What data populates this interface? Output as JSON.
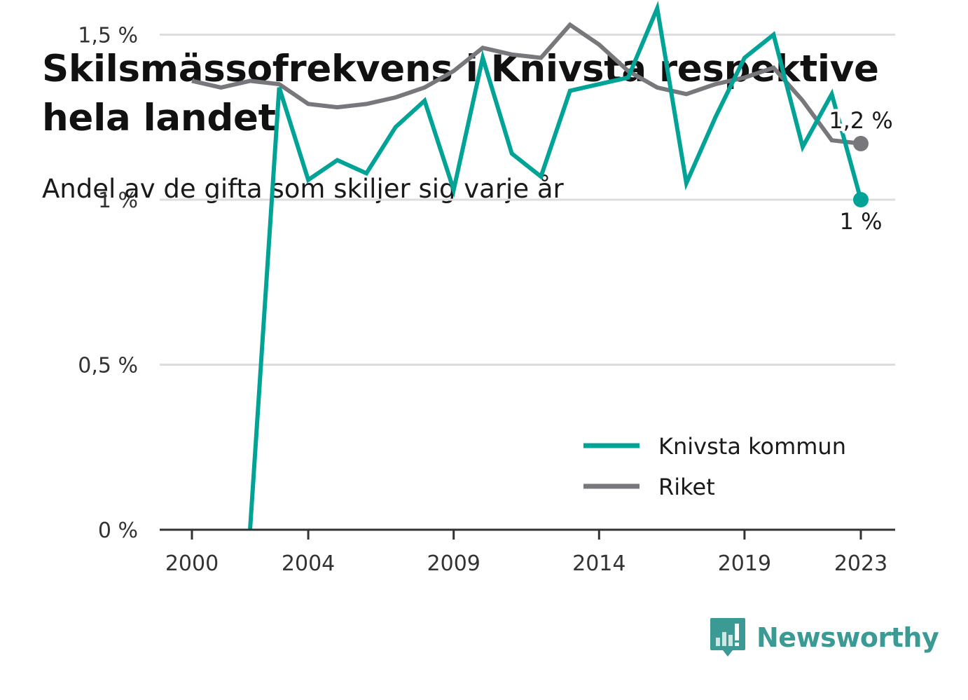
{
  "title": "Skilsmässofrekvens i Knivsta respektive hela landet",
  "subtitle": "Andel av de gifta som skiljer sig varje år",
  "brand": {
    "name": "Newsworthy",
    "color": "#3c9a94",
    "icon": "bar-chart-speech-bubble-icon"
  },
  "chart_data": {
    "type": "line",
    "title": "Skilsmässofrekvens i Knivsta respektive hela landet",
    "subtitle": "Andel av de gifta som skiljer sig varje år",
    "xlabel": "",
    "ylabel": "",
    "xlim": [
      2000,
      2023
    ],
    "ylim": [
      0,
      1.6
    ],
    "x_ticks": [
      2000,
      2004,
      2009,
      2014,
      2019,
      2023
    ],
    "x_tick_labels": [
      "2000",
      "2004",
      "2009",
      "2014",
      "2019",
      "2023"
    ],
    "y_ticks": [
      0,
      0.5,
      1,
      1.5
    ],
    "y_tick_labels": [
      "0 %",
      "0,5 %",
      "1 %",
      "1,5 %"
    ],
    "grid": "horizontal",
    "legend_position": "bottom-right",
    "series": [
      {
        "name": "Knivsta kommun",
        "color": "#00a396",
        "x": [
          2002,
          2003,
          2004,
          2005,
          2006,
          2007,
          2008,
          2009,
          2010,
          2011,
          2012,
          2013,
          2014,
          2015,
          2016,
          2017,
          2018,
          2019,
          2020,
          2021,
          2022,
          2023
        ],
        "values": [
          0,
          1.34,
          1.06,
          1.12,
          1.08,
          1.22,
          1.3,
          1.03,
          1.43,
          1.14,
          1.07,
          1.33,
          1.35,
          1.37,
          1.58,
          1.05,
          1.25,
          1.43,
          1.5,
          1.16,
          1.32,
          1.0
        ],
        "end_label": "1 %"
      },
      {
        "name": "Riket",
        "color": "#77777c",
        "x": [
          2000,
          2001,
          2002,
          2003,
          2004,
          2005,
          2006,
          2007,
          2008,
          2009,
          2010,
          2011,
          2012,
          2013,
          2014,
          2015,
          2016,
          2017,
          2018,
          2019,
          2020,
          2021,
          2022,
          2023
        ],
        "values": [
          1.36,
          1.34,
          1.36,
          1.35,
          1.29,
          1.28,
          1.29,
          1.31,
          1.34,
          1.39,
          1.46,
          1.44,
          1.43,
          1.53,
          1.47,
          1.39,
          1.34,
          1.32,
          1.35,
          1.37,
          1.4,
          1.3,
          1.18,
          1.17
        ],
        "end_label": "1,2 %"
      }
    ]
  }
}
